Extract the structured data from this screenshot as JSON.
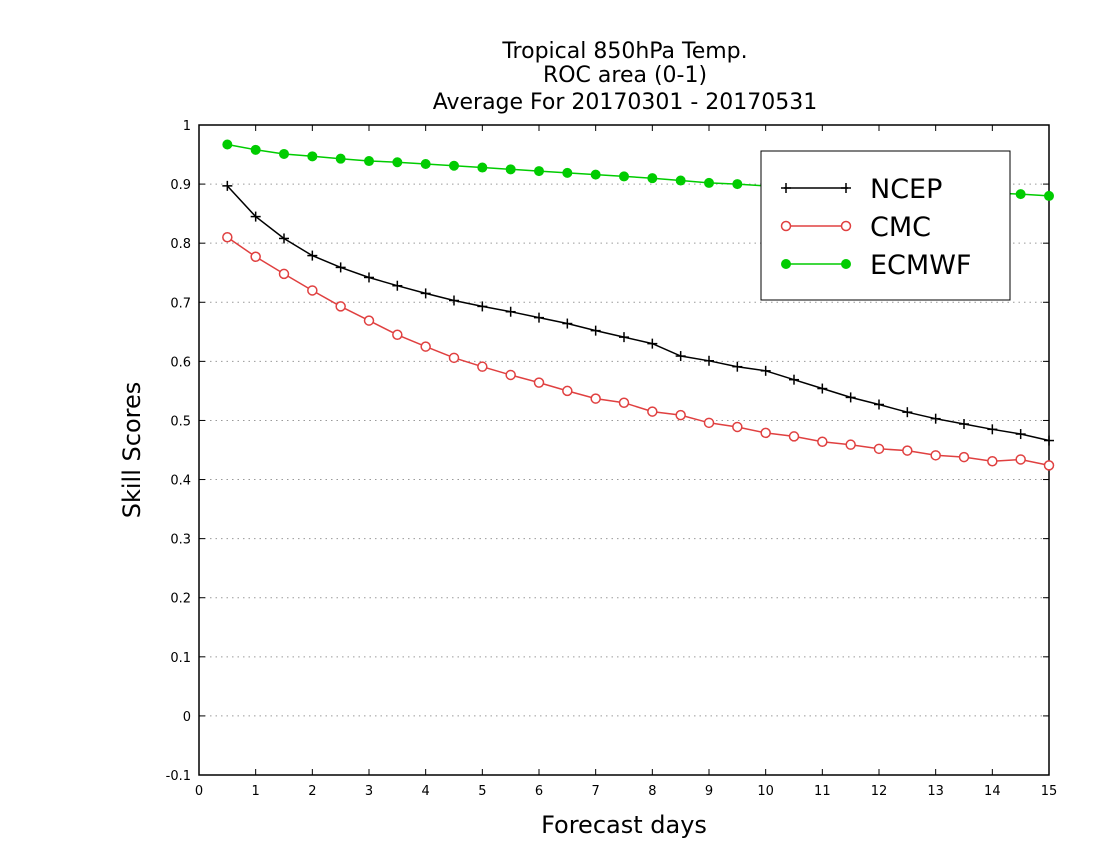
{
  "chart_data": {
    "type": "line",
    "title_lines": [
      "Tropical 850hPa Temp.",
      "ROC area (0-1)",
      "Average For 20170301 - 20170531"
    ],
    "xlabel": "Forecast days",
    "ylabel": "Skill Scores",
    "xlim": [
      0,
      15
    ],
    "ylim": [
      -0.1,
      1
    ],
    "xticks": [
      "0",
      "1",
      "2",
      "3",
      "4",
      "5",
      "6",
      "7",
      "8",
      "9",
      "10",
      "11",
      "12",
      "13",
      "14",
      "15"
    ],
    "yticks": [
      "-0.1",
      "0",
      "0.1",
      "0.2",
      "0.3",
      "0.4",
      "0.5",
      "0.6",
      "0.7",
      "0.8",
      "0.9",
      "1"
    ],
    "grid": "horizontal dotted",
    "legend_position": "top-right",
    "x": [
      0.5,
      1,
      1.5,
      2,
      2.5,
      3,
      3.5,
      4,
      4.5,
      5,
      5.5,
      6,
      6.5,
      7,
      7.5,
      8,
      8.5,
      9,
      9.5,
      10,
      10.5,
      11,
      11.5,
      12,
      12.5,
      13,
      13.5,
      14,
      14.5,
      15
    ],
    "series": [
      {
        "name": "NCEP",
        "color": "#000000",
        "marker": "plus",
        "values": [
          0.897,
          0.845,
          0.808,
          0.779,
          0.759,
          0.742,
          0.728,
          0.715,
          0.703,
          0.693,
          0.684,
          0.674,
          0.664,
          0.652,
          0.641,
          0.63,
          0.609,
          0.601,
          0.591,
          0.584,
          0.569,
          0.554,
          0.539,
          0.527,
          0.514,
          0.503,
          0.494,
          0.485,
          0.477,
          0.466
        ]
      },
      {
        "name": "CMC",
        "color": "#e04040",
        "marker": "open-circle",
        "values": [
          0.81,
          0.777,
          0.748,
          0.72,
          0.693,
          0.669,
          0.645,
          0.625,
          0.606,
          0.591,
          0.577,
          0.564,
          0.55,
          0.537,
          0.53,
          0.515,
          0.509,
          0.496,
          0.489,
          0.479,
          0.473,
          0.464,
          0.459,
          0.452,
          0.449,
          0.441,
          0.438,
          0.431,
          0.434,
          0.424
        ]
      },
      {
        "name": "ECMWF",
        "color": "#00cc00",
        "marker": "filled-circle",
        "values": [
          0.967,
          0.958,
          0.951,
          0.947,
          0.943,
          0.939,
          0.937,
          0.934,
          0.931,
          0.928,
          0.925,
          0.922,
          0.919,
          0.916,
          0.913,
          0.91,
          0.906,
          0.902,
          0.9,
          0.897,
          0.895,
          0.893,
          0.89,
          0.889,
          0.887,
          0.886,
          0.885,
          0.885,
          0.883,
          0.88
        ]
      }
    ]
  }
}
